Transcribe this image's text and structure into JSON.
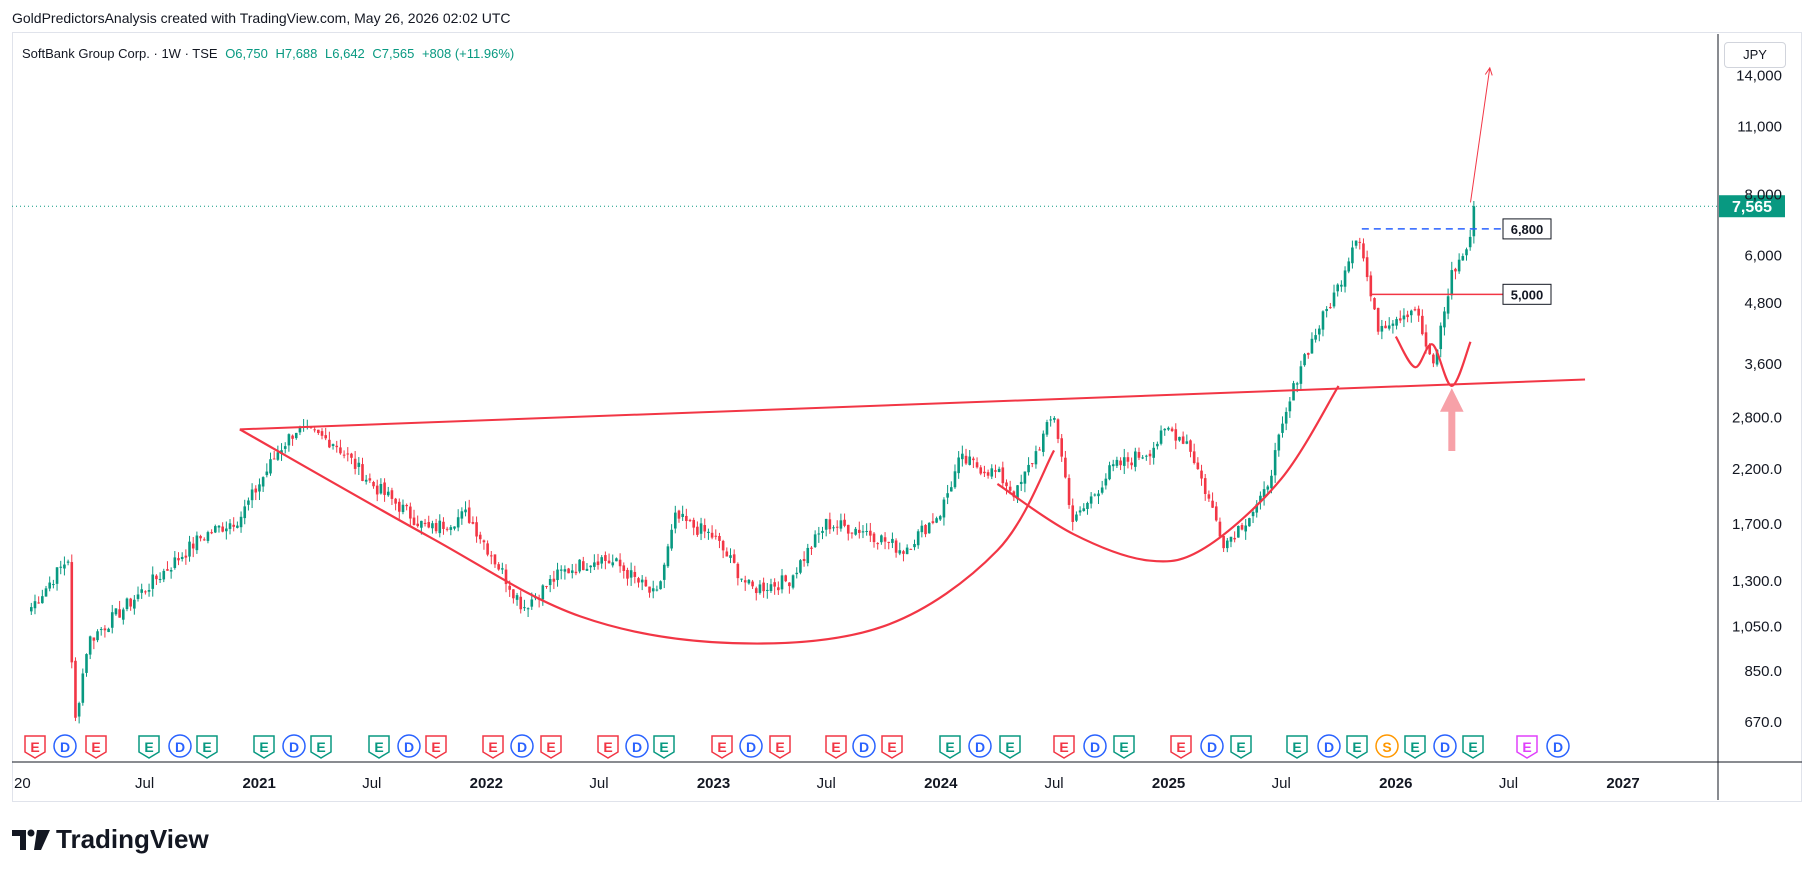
{
  "header": {
    "credit": "GoldPredictorsAnalysis created with TradingView.com, May 26, 2026 02:02 UTC"
  },
  "legend": {
    "symbol": "SoftBank Group Corp. · 1W · TSE",
    "open": "O6,750",
    "high": "H7,688",
    "low": "L6,642",
    "close": "C7,565",
    "change": "+808 (+11.96%)"
  },
  "currency": "JPY",
  "brand": "TradingView",
  "colors": {
    "up": "#089981",
    "down": "#f23645",
    "annotation": "#f23645",
    "resistance_dash": "#2962ff",
    "last_price": "#089981"
  },
  "chart_data": {
    "type": "candlestick",
    "title": "",
    "ylabel": "",
    "y_scale": "log",
    "y_ticks": [
      "14,000",
      "11,000",
      "8,000",
      "6,000",
      "4,800",
      "3,600",
      "2,800.0",
      "2,200.0",
      "1,700.0",
      "1,300.0",
      "1,050.0",
      "850.0",
      "670.0"
    ],
    "ylim": [
      560,
      17000
    ],
    "x_ticks": [
      "20",
      "Jul",
      "2021",
      "Jul",
      "2022",
      "Jul",
      "2023",
      "Jul",
      "2024",
      "Jul",
      "2025",
      "Jul",
      "2026",
      "Jul",
      "2027"
    ],
    "last_price": {
      "value": 7565,
      "label": "7,565"
    },
    "price_levels": [
      {
        "value": 6800,
        "label": "6,800",
        "style": "dashed"
      },
      {
        "value": 5000,
        "label": "5,000",
        "style": "solid"
      }
    ],
    "anchors": [
      [
        "2020-01",
        1150
      ],
      [
        "2020-03",
        1450
      ],
      [
        "2020-03",
        640
      ],
      [
        "2020-04",
        980
      ],
      [
        "2020-07",
        1250
      ],
      [
        "2020-10",
        1600
      ],
      [
        "2020-12",
        1750
      ],
      [
        "2021-02",
        2400
      ],
      [
        "2021-03",
        2650
      ],
      [
        "2021-05",
        2500
      ],
      [
        "2021-07",
        2050
      ],
      [
        "2021-10",
        1650
      ],
      [
        "2021-12",
        1780
      ],
      [
        "2022-03",
        1150
      ],
      [
        "2022-05",
        1350
      ],
      [
        "2022-07",
        1450
      ],
      [
        "2022-08",
        1400
      ],
      [
        "2022-10",
        1200
      ],
      [
        "2022-11",
        1750
      ],
      [
        "2023-01",
        1600
      ],
      [
        "2023-03",
        1250
      ],
      [
        "2023-05",
        1300
      ],
      [
        "2023-07",
        1700
      ],
      [
        "2023-09",
        1650
      ],
      [
        "2023-11",
        1500
      ],
      [
        "2024-01",
        1800
      ],
      [
        "2024-02",
        2300
      ],
      [
        "2024-04",
        2150
      ],
      [
        "2024-05",
        1950
      ],
      [
        "2024-07",
        2850
      ],
      [
        "2024-08",
        1700
      ],
      [
        "2024-10",
        2200
      ],
      [
        "2024-12",
        2400
      ],
      [
        "2025-01",
        2650
      ],
      [
        "2025-02",
        2500
      ],
      [
        "2025-04",
        1550
      ],
      [
        "2025-06",
        1900
      ],
      [
        "2025-08",
        3600
      ],
      [
        "2025-10",
        5200
      ],
      [
        "2025-11",
        6800
      ],
      [
        "2025-12",
        4300
      ],
      [
        "2026-02",
        4700
      ],
      [
        "2026-03",
        3500
      ],
      [
        "2026-04",
        5500
      ],
      [
        "2026-05",
        6400
      ],
      [
        "2026-05",
        7565
      ]
    ],
    "annotations": [
      {
        "type": "trendline",
        "label": "neckline",
        "from": [
          "2020-12",
          2650
        ],
        "to": [
          "2026-11",
          3350
        ]
      },
      {
        "type": "arc",
        "label": "cup",
        "points": [
          [
            "2020-12",
            2650
          ],
          [
            "2021-10",
            1600
          ],
          [
            "2022-06",
            1100
          ],
          [
            "2023-02",
            970
          ],
          [
            "2023-10",
            1050
          ],
          [
            "2024-04",
            1500
          ],
          [
            "2024-07",
            2400
          ]
        ]
      },
      {
        "type": "arc",
        "label": "cup",
        "points": [
          [
            "2024-04",
            2050
          ],
          [
            "2024-08",
            1620
          ],
          [
            "2024-12",
            1430
          ],
          [
            "2025-03",
            1520
          ],
          [
            "2025-07",
            2100
          ],
          [
            "2025-10",
            3250
          ]
        ]
      },
      {
        "type": "arc",
        "label": "handle",
        "points": [
          [
            "2026-01",
            4100
          ],
          [
            "2026-02",
            3550
          ],
          [
            "2026-03",
            3950
          ],
          [
            "2026-04",
            3250
          ],
          [
            "2026-05",
            4000
          ]
        ]
      },
      {
        "type": "arrow",
        "label": "target",
        "from": [
          "2026-05",
          7700
        ],
        "to": [
          "2026-06",
          14500
        ]
      },
      {
        "type": "arrow",
        "label": "bottom-marker",
        "from": [
          "2026-04",
          2400
        ],
        "to": [
          "2026-04",
          3200
        ]
      }
    ]
  },
  "events": [
    [
      "E",
      "#f23645"
    ],
    [
      "D",
      "#2962ff"
    ],
    [
      "E",
      "#f23645"
    ],
    [
      "E",
      "#089981"
    ],
    [
      "D",
      "#2962ff"
    ],
    [
      "E",
      "#089981"
    ],
    [
      "E",
      "#089981"
    ],
    [
      "D",
      "#2962ff"
    ],
    [
      "E",
      "#089981"
    ],
    [
      "E",
      "#089981"
    ],
    [
      "D",
      "#2962ff"
    ],
    [
      "E",
      "#f23645"
    ],
    [
      "E",
      "#f23645"
    ],
    [
      "D",
      "#2962ff"
    ],
    [
      "E",
      "#f23645"
    ],
    [
      "E",
      "#f23645"
    ],
    [
      "D",
      "#2962ff"
    ],
    [
      "E",
      "#089981"
    ],
    [
      "E",
      "#f23645"
    ],
    [
      "D",
      "#2962ff"
    ],
    [
      "E",
      "#f23645"
    ],
    [
      "E",
      "#f23645"
    ],
    [
      "D",
      "#2962ff"
    ],
    [
      "E",
      "#f23645"
    ],
    [
      "E",
      "#089981"
    ],
    [
      "D",
      "#2962ff"
    ],
    [
      "E",
      "#089981"
    ],
    [
      "E",
      "#f23645"
    ],
    [
      "D",
      "#2962ff"
    ],
    [
      "E",
      "#089981"
    ],
    [
      "E",
      "#f23645"
    ],
    [
      "D",
      "#2962ff"
    ],
    [
      "E",
      "#089981"
    ],
    [
      "E",
      "#089981"
    ],
    [
      "D",
      "#2962ff"
    ],
    [
      "E",
      "#089981"
    ],
    [
      "S",
      "#ff9800"
    ],
    [
      "E",
      "#089981"
    ],
    [
      "D",
      "#2962ff"
    ],
    [
      "E",
      "#089981"
    ],
    [
      "E",
      "#e040fb"
    ],
    [
      "D",
      "#2962ff"
    ]
  ]
}
